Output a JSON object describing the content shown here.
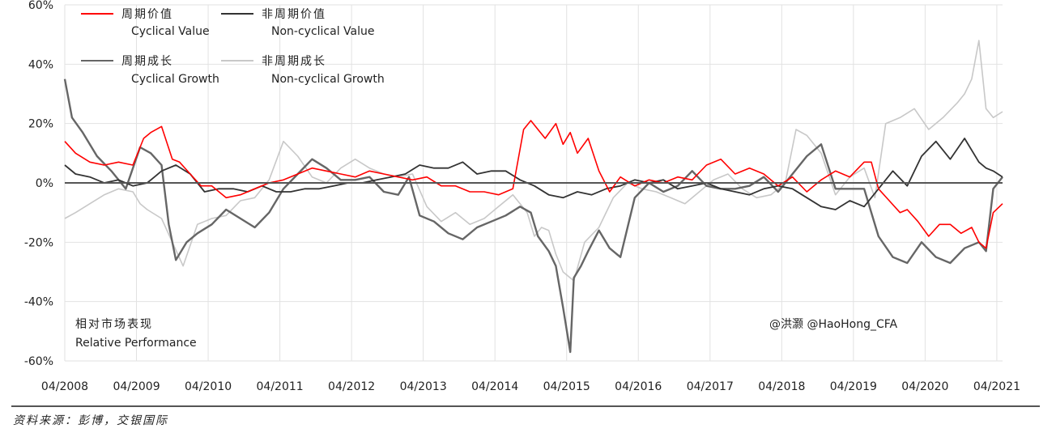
{
  "chart_data": {
    "type": "line",
    "xlim": [
      2008.25,
      2021.33
    ],
    "ylim": [
      -60,
      60
    ],
    "grid": true,
    "y_ticks": [
      -60,
      -40,
      -20,
      0,
      20,
      40,
      60
    ],
    "y_tick_labels": [
      "-60%",
      "-40%",
      "-20%",
      "0%",
      "20%",
      "40%",
      "60%"
    ],
    "x_ticks": [
      2008.25,
      2009.25,
      2010.25,
      2011.25,
      2012.25,
      2013.25,
      2014.25,
      2015.25,
      2016.25,
      2017.25,
      2018.25,
      2019.25,
      2020.25,
      2021.25
    ],
    "x_tick_labels": [
      "04/2008",
      "04/2009",
      "04/2010",
      "04/2011",
      "04/2012",
      "04/2013",
      "04/2014",
      "04/2015",
      "04/2016",
      "04/2017",
      "04/2018",
      "04/2019",
      "04/2020",
      "04/2021"
    ],
    "legend_position": "top-left",
    "annotation_cn": "相对市场表现",
    "annotation_en": "Relative Performance",
    "watermark": "@洪灏 @HaoHong_CFA",
    "source_note": "资料来源：彭博，交银国际",
    "series": [
      {
        "name_cn": "周期价值",
        "name_en": "Cyclical Value",
        "color": "#ff0000",
        "x": [
          2008.25,
          2008.4,
          2008.6,
          2008.8,
          2009.0,
          2009.2,
          2009.35,
          2009.45,
          2009.6,
          2009.75,
          2009.85,
          2010.0,
          2010.15,
          2010.3,
          2010.5,
          2010.7,
          2010.9,
          2011.1,
          2011.3,
          2011.5,
          2011.7,
          2011.9,
          2012.1,
          2012.3,
          2012.5,
          2012.7,
          2012.9,
          2013.1,
          2013.3,
          2013.5,
          2013.7,
          2013.9,
          2014.1,
          2014.3,
          2014.5,
          2014.65,
          2014.75,
          2014.85,
          2014.95,
          2015.1,
          2015.2,
          2015.3,
          2015.4,
          2015.55,
          2015.7,
          2015.85,
          2016.0,
          2016.2,
          2016.4,
          2016.6,
          2016.8,
          2017.0,
          2017.2,
          2017.4,
          2017.6,
          2017.8,
          2018.0,
          2018.2,
          2018.4,
          2018.6,
          2018.8,
          2019.0,
          2019.2,
          2019.4,
          2019.5,
          2019.6,
          2019.75,
          2019.9,
          2020.0,
          2020.15,
          2020.3,
          2020.45,
          2020.6,
          2020.75,
          2020.9,
          2021.0,
          2021.1,
          2021.2,
          2021.33
        ],
        "y": [
          14,
          10,
          7,
          6,
          7,
          6,
          15,
          17,
          19,
          8,
          7,
          3,
          -1,
          -1,
          -5,
          -4,
          -2,
          0,
          1,
          3,
          5,
          4,
          3,
          2,
          4,
          3,
          2,
          1,
          2,
          -1,
          -1,
          -3,
          -3,
          -4,
          -2,
          18,
          21,
          18,
          15,
          20,
          13,
          17,
          10,
          15,
          4,
          -3,
          2,
          -1,
          1,
          0,
          2,
          1,
          6,
          8,
          3,
          5,
          3,
          -1,
          2,
          -3,
          1,
          4,
          2,
          7,
          7,
          -2,
          -6,
          -10,
          -9,
          -13,
          -18,
          -14,
          -14,
          -17,
          -15,
          -20,
          -22,
          -10,
          -7
        ]
      },
      {
        "name_cn": "非周期价值",
        "name_en": "Non-cyclical Value",
        "color": "#333333",
        "x": [
          2008.25,
          2008.4,
          2008.6,
          2008.8,
          2009.0,
          2009.2,
          2009.4,
          2009.5,
          2009.6,
          2009.8,
          2010.0,
          2010.2,
          2010.4,
          2010.6,
          2010.8,
          2011.0,
          2011.2,
          2011.4,
          2011.6,
          2011.8,
          2012.0,
          2012.2,
          2012.4,
          2012.6,
          2012.8,
          2013.0,
          2013.2,
          2013.4,
          2013.6,
          2013.8,
          2014.0,
          2014.2,
          2014.4,
          2014.6,
          2014.8,
          2015.0,
          2015.2,
          2015.4,
          2015.6,
          2015.8,
          2016.0,
          2016.2,
          2016.4,
          2016.6,
          2016.8,
          2017.0,
          2017.2,
          2017.4,
          2017.6,
          2017.8,
          2018.0,
          2018.2,
          2018.4,
          2018.6,
          2018.8,
          2019.0,
          2019.2,
          2019.4,
          2019.6,
          2019.8,
          2020.0,
          2020.2,
          2020.4,
          2020.6,
          2020.8,
          2021.0,
          2021.1,
          2021.2,
          2021.33
        ],
        "y": [
          6,
          3,
          2,
          0,
          1,
          -1,
          0,
          2,
          4,
          6,
          3,
          -3,
          -2,
          -2,
          -3,
          -1,
          -3,
          -3,
          -2,
          -2,
          -1,
          0,
          0,
          1,
          2,
          3,
          6,
          5,
          5,
          7,
          3,
          4,
          4,
          1,
          -1,
          -4,
          -5,
          -3,
          -4,
          -2,
          -1,
          1,
          0,
          1,
          -2,
          -1,
          0,
          -2,
          -3,
          -4,
          -2,
          -1,
          -2,
          -5,
          -8,
          -9,
          -6,
          -8,
          -2,
          4,
          -1,
          9,
          14,
          8,
          15,
          7,
          5,
          4,
          2
        ]
      },
      {
        "name_cn": "周期成长",
        "name_en": "Cyclical Growth",
        "color": "#666666",
        "x": [
          2008.25,
          2008.35,
          2008.5,
          2008.7,
          2008.9,
          2009.1,
          2009.3,
          2009.45,
          2009.6,
          2009.7,
          2009.8,
          2009.95,
          2010.1,
          2010.3,
          2010.5,
          2010.7,
          2010.9,
          2011.1,
          2011.3,
          2011.5,
          2011.7,
          2011.9,
          2012.1,
          2012.3,
          2012.5,
          2012.7,
          2012.9,
          2013.05,
          2013.2,
          2013.4,
          2013.6,
          2013.8,
          2014.0,
          2014.2,
          2014.4,
          2014.6,
          2014.75,
          2014.85,
          2015.0,
          2015.1,
          2015.2,
          2015.3,
          2015.35,
          2015.45,
          2015.55,
          2015.7,
          2015.85,
          2016.0,
          2016.2,
          2016.4,
          2016.6,
          2016.8,
          2017.0,
          2017.2,
          2017.4,
          2017.6,
          2017.8,
          2018.0,
          2018.2,
          2018.4,
          2018.6,
          2018.8,
          2019.0,
          2019.2,
          2019.4,
          2019.6,
          2019.8,
          2020.0,
          2020.2,
          2020.4,
          2020.6,
          2020.8,
          2021.0,
          2021.1,
          2021.2,
          2021.33
        ],
        "y": [
          35,
          22,
          17,
          9,
          4,
          -2,
          12,
          10,
          6,
          -14,
          -26,
          -20,
          -17,
          -14,
          -9,
          -12,
          -15,
          -10,
          -2,
          3,
          8,
          5,
          1,
          1,
          2,
          -3,
          -4,
          2,
          -11,
          -13,
          -17,
          -19,
          -15,
          -13,
          -11,
          -8,
          -10,
          -18,
          -23,
          -28,
          -42,
          -57,
          -32,
          -28,
          -23,
          -16,
          -22,
          -25,
          -5,
          0,
          -3,
          -1,
          4,
          -1,
          -2,
          -2,
          -1,
          2,
          -3,
          3,
          9,
          13,
          -2,
          -2,
          -2,
          -18,
          -25,
          -27,
          -20,
          -25,
          -27,
          -22,
          -20,
          -23,
          -2,
          2
        ]
      },
      {
        "name_cn": "非周期成长",
        "name_en": "Non-cyclical Growth",
        "color": "#c8c8c8",
        "x": [
          2008.25,
          2008.4,
          2008.6,
          2008.8,
          2009.0,
          2009.2,
          2009.3,
          2009.4,
          2009.6,
          2009.75,
          2009.9,
          2010.1,
          2010.3,
          2010.5,
          2010.7,
          2010.9,
          2011.1,
          2011.3,
          2011.5,
          2011.7,
          2011.9,
          2012.1,
          2012.3,
          2012.5,
          2012.7,
          2012.9,
          2013.1,
          2013.3,
          2013.5,
          2013.7,
          2013.9,
          2014.1,
          2014.3,
          2014.5,
          2014.6,
          2014.7,
          2014.8,
          2014.9,
          2015.0,
          2015.1,
          2015.2,
          2015.35,
          2015.5,
          2015.7,
          2015.9,
          2016.1,
          2016.3,
          2016.5,
          2016.7,
          2016.9,
          2017.1,
          2017.3,
          2017.5,
          2017.7,
          2017.9,
          2018.1,
          2018.3,
          2018.45,
          2018.6,
          2018.8,
          2019.0,
          2019.2,
          2019.4,
          2019.55,
          2019.7,
          2019.9,
          2020.1,
          2020.3,
          2020.5,
          2020.7,
          2020.8,
          2020.9,
          2021.0,
          2021.1,
          2021.2,
          2021.33
        ],
        "y": [
          -12,
          -10,
          -7,
          -4,
          -2,
          -3,
          -7,
          -9,
          -12,
          -20,
          -28,
          -14,
          -12,
          -11,
          -6,
          -5,
          1,
          14,
          9,
          2,
          0,
          5,
          8,
          5,
          3,
          2,
          3,
          -8,
          -13,
          -10,
          -14,
          -12,
          -8,
          -4,
          -7,
          -10,
          -18,
          -15,
          -16,
          -24,
          -30,
          -33,
          -20,
          -15,
          -5,
          0,
          -2,
          -3,
          -5,
          -7,
          -3,
          1,
          3,
          -2,
          -5,
          -4,
          0,
          18,
          16,
          10,
          -4,
          2,
          5,
          -5,
          20,
          22,
          25,
          18,
          22,
          27,
          30,
          35,
          48,
          25,
          22,
          24
        ]
      }
    ]
  }
}
